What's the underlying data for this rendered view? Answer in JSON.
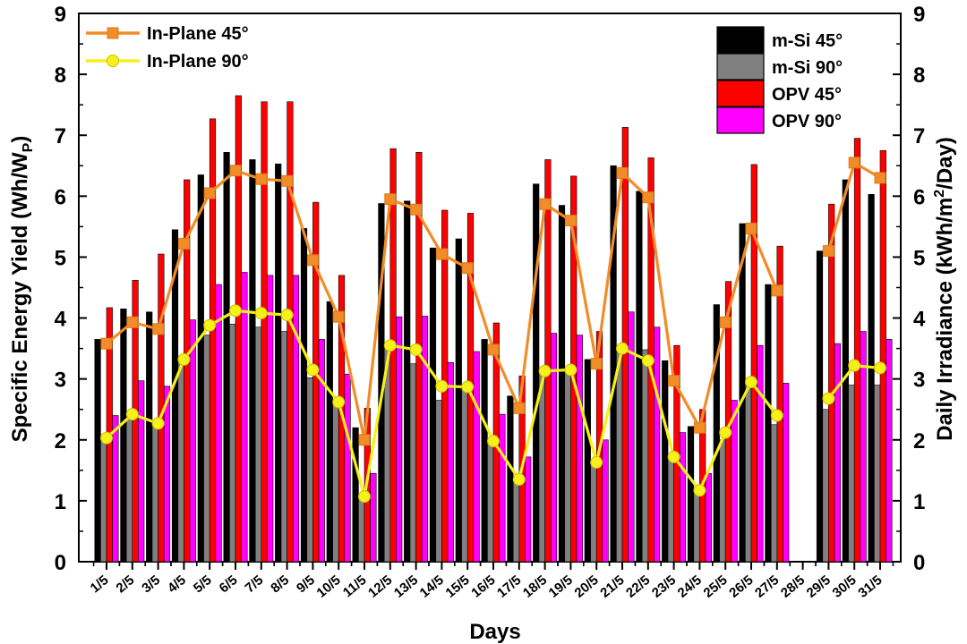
{
  "chart_data": {
    "type": "bar",
    "xlabel": "Days",
    "ylabel_left": {
      "main": "Specific Energy Yield (Wh/W",
      "sub": "P",
      "end": ")"
    },
    "ylabel_right": {
      "main": "Daily Irradiance (kWh/m",
      "sup": "2",
      "end": "/Day)"
    },
    "ylim_left": [
      0,
      9
    ],
    "ylim_right": [
      0,
      9
    ],
    "yticks": [
      "0",
      "1",
      "2",
      "3",
      "4",
      "5",
      "6",
      "7",
      "8",
      "9"
    ],
    "categories": [
      "1/5",
      "2/5",
      "3/5",
      "4/5",
      "5/5",
      "6/5",
      "7/5",
      "8/5",
      "9/5",
      "10/5",
      "11/5",
      "12/5",
      "13/5",
      "14/5",
      "15/5",
      "16/5",
      "17/5",
      "18/5",
      "19/5",
      "20/5",
      "21/5",
      "22/5",
      "23/5",
      "24/5",
      "25/5",
      "26/5",
      "27/5",
      "28/5",
      "29/5",
      "30/5",
      "31/5"
    ],
    "bar_series": [
      {
        "name": "m-Si 45°",
        "color": "#000000",
        "values": [
          3.65,
          4.15,
          4.1,
          5.45,
          6.35,
          6.72,
          6.6,
          6.53,
          5.47,
          4.27,
          2.2,
          5.88,
          5.92,
          5.15,
          5.3,
          3.65,
          2.72,
          6.2,
          5.85,
          3.32,
          6.5,
          6.08,
          3.3,
          2.22,
          4.22,
          5.55,
          4.55,
          null,
          5.1,
          6.27,
          6.03
        ]
      },
      {
        "name": "m-Si 90°",
        "color": "#808080",
        "values": [
          2.05,
          2.4,
          2.25,
          3.3,
          3.72,
          3.9,
          3.85,
          3.78,
          3.02,
          2.62,
          1.05,
          3.5,
          3.25,
          2.65,
          2.85,
          2.0,
          1.3,
          3.1,
          3.12,
          1.6,
          3.45,
          3.48,
          1.75,
          1.12,
          2.0,
          2.88,
          2.25,
          null,
          2.5,
          2.9,
          2.9
        ]
      },
      {
        "name": "OPV 45°",
        "color": "#ff0000",
        "values": [
          4.17,
          4.62,
          5.05,
          6.27,
          7.27,
          7.65,
          7.55,
          7.55,
          5.9,
          4.7,
          2.52,
          6.78,
          6.72,
          5.77,
          5.72,
          3.92,
          3.05,
          6.6,
          6.33,
          3.78,
          7.13,
          6.63,
          3.55,
          2.5,
          4.6,
          6.52,
          5.18,
          null,
          5.87,
          6.95,
          6.75
        ]
      },
      {
        "name": "OPV 90°",
        "color": "#ff00ff",
        "values": [
          2.4,
          2.97,
          2.88,
          3.97,
          4.55,
          4.75,
          4.7,
          4.7,
          3.65,
          3.08,
          1.45,
          4.02,
          4.03,
          3.27,
          3.45,
          2.42,
          1.72,
          3.75,
          3.72,
          2.0,
          4.1,
          3.85,
          2.12,
          1.45,
          2.65,
          3.55,
          2.93,
          null,
          3.58,
          3.78,
          3.65
        ]
      }
    ],
    "line_series": [
      {
        "name": "In-Plane 45°",
        "color": "#f28c28",
        "marker": "square",
        "axis": "right",
        "values": [
          3.58,
          3.93,
          3.82,
          5.22,
          6.05,
          6.42,
          6.28,
          6.25,
          4.95,
          4.02,
          2.0,
          5.95,
          5.78,
          5.05,
          4.82,
          3.48,
          2.52,
          5.87,
          5.6,
          3.25,
          6.38,
          5.98,
          2.97,
          2.2,
          3.93,
          5.47,
          4.45,
          null,
          5.1,
          6.55,
          6.3
        ]
      },
      {
        "name": "In-Plane 90°",
        "color": "#f7f01a",
        "marker": "circle",
        "axis": "right",
        "values": [
          2.03,
          2.42,
          2.27,
          3.32,
          3.88,
          4.12,
          4.08,
          4.05,
          3.15,
          2.62,
          1.07,
          3.55,
          3.48,
          2.88,
          2.87,
          1.98,
          1.35,
          3.13,
          3.15,
          1.63,
          3.5,
          3.3,
          1.72,
          1.17,
          2.12,
          2.95,
          2.4,
          null,
          2.68,
          3.22,
          3.18
        ]
      }
    ],
    "legend_lines_position": "top-left",
    "legend_bars_position": "top-right"
  }
}
